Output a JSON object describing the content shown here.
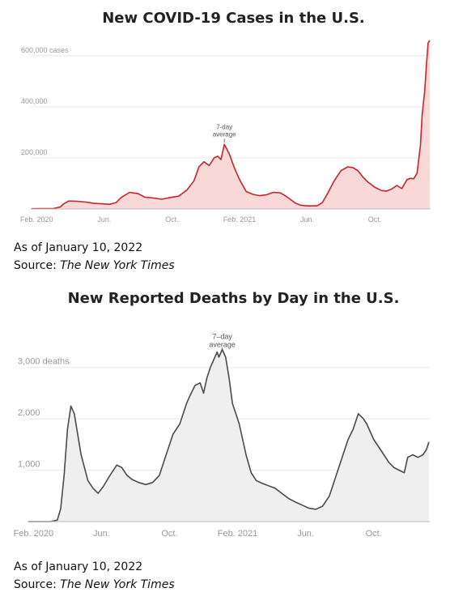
{
  "chart_data": [
    {
      "type": "area",
      "title": "New COVID-19 Cases in the U.S.",
      "xlabel": "",
      "ylabel": "",
      "x_unit": "months since Jan 2020",
      "x_ticks": [
        {
          "label": "Feb. 2020",
          "x": 1
        },
        {
          "label": "Jun.",
          "x": 5
        },
        {
          "label": "Oct.",
          "x": 9
        },
        {
          "label": "Feb. 2021",
          "x": 13
        },
        {
          "label": "Jun.",
          "x": 17
        },
        {
          "label": "Oct.",
          "x": 21
        }
      ],
      "y_ticks": [
        {
          "label": "600,000 cases",
          "y": 600000
        },
        {
          "label": "400,000",
          "y": 400000
        },
        {
          "label": "200,000",
          "y": 200000
        }
      ],
      "xlim": [
        0.65,
        24.3
      ],
      "ylim": [
        0,
        660000
      ],
      "annotation": {
        "lines": [
          "7-day",
          "average"
        ],
        "x": 12.1,
        "y": 253000
      },
      "series": [
        {
          "color": "#cc2229",
          "fill": "#f9d9d8",
          "x": [
            0.7,
            2.0,
            2.4,
            2.6,
            2.9,
            3.4,
            3.9,
            4.4,
            4.9,
            5.3,
            5.7,
            6.0,
            6.5,
            7.0,
            7.4,
            7.9,
            8.4,
            8.9,
            9.4,
            9.9,
            10.3,
            10.6,
            10.9,
            11.2,
            11.5,
            11.7,
            11.9,
            12.1,
            12.4,
            12.7,
            13.0,
            13.4,
            13.8,
            14.2,
            14.6,
            15.0,
            15.4,
            15.7,
            16.0,
            16.3,
            16.6,
            17.0,
            17.3,
            17.6,
            17.9,
            18.2,
            18.6,
            19.0,
            19.4,
            19.7,
            20.0,
            20.3,
            20.6,
            21.0,
            21.4,
            21.7,
            22.0,
            22.3,
            22.6,
            22.9,
            23.1,
            23.3,
            23.5,
            23.7,
            23.8,
            23.95,
            24.05,
            24.15,
            24.25
          ],
          "y": [
            1000,
            2000,
            8000,
            20000,
            31000,
            30000,
            27000,
            22000,
            20000,
            18000,
            25000,
            45000,
            65000,
            60000,
            46000,
            43000,
            38000,
            45000,
            50000,
            75000,
            110000,
            165000,
            185000,
            170000,
            200000,
            207000,
            194000,
            253000,
            215000,
            160000,
            115000,
            68000,
            57000,
            52000,
            56000,
            65000,
            63000,
            52000,
            38000,
            23000,
            15000,
            12000,
            12000,
            13000,
            25000,
            60000,
            110000,
            150000,
            165000,
            162000,
            150000,
            125000,
            105000,
            85000,
            72000,
            70000,
            78000,
            92000,
            80000,
            115000,
            120000,
            118000,
            140000,
            250000,
            370000,
            460000,
            560000,
            650000,
            660000
          ]
        }
      ]
    },
    {
      "type": "area",
      "title": "New Reported Deaths by Day in the U.S.",
      "xlabel": "",
      "ylabel": "",
      "x_unit": "months since Jan 2020",
      "x_ticks": [
        {
          "label": "Feb. 2020",
          "x": 1
        },
        {
          "label": "Jun.",
          "x": 5
        },
        {
          "label": "Oct.",
          "x": 9
        },
        {
          "label": "Feb. 2021",
          "x": 13
        },
        {
          "label": "Jun.",
          "x": 17
        },
        {
          "label": "Oct.",
          "x": 21
        }
      ],
      "y_ticks": [
        {
          "label": "3,000 deaths",
          "y": 3000
        },
        {
          "label": "2,000",
          "y": 2000
        },
        {
          "label": "1,000",
          "y": 1000
        }
      ],
      "xlim": [
        0.65,
        24.3
      ],
      "ylim": [
        0,
        3500
      ],
      "annotation": {
        "lines": [
          "7–day",
          "average"
        ],
        "x": 12.1,
        "y": 3350
      },
      "series": [
        {
          "color": "#4a4a4a",
          "fill": "#efefef",
          "x": [
            0.7,
            2.0,
            2.4,
            2.6,
            2.8,
            3.0,
            3.2,
            3.4,
            3.6,
            3.8,
            4.0,
            4.2,
            4.5,
            4.8,
            5.1,
            5.5,
            5.9,
            6.2,
            6.5,
            6.8,
            7.2,
            7.6,
            8.0,
            8.4,
            8.8,
            9.2,
            9.6,
            10.0,
            10.2,
            10.5,
            10.8,
            11.0,
            11.2,
            11.4,
            11.6,
            11.8,
            11.9,
            12.1,
            12.3,
            12.5,
            12.7,
            12.9,
            13.1,
            13.3,
            13.5,
            13.8,
            14.1,
            14.4,
            14.8,
            15.2,
            15.6,
            16.0,
            16.4,
            16.8,
            17.2,
            17.6,
            18.0,
            18.4,
            18.8,
            19.2,
            19.5,
            19.8,
            20.1,
            20.4,
            20.6,
            20.8,
            21.0,
            21.3,
            21.6,
            21.9,
            22.2,
            22.5,
            22.8,
            23.0,
            23.3,
            23.6,
            23.9,
            24.1,
            24.25
          ],
          "y": [
            0,
            0,
            30,
            250,
            900,
            1800,
            2250,
            2100,
            1700,
            1300,
            1050,
            800,
            650,
            550,
            680,
            900,
            1100,
            1050,
            900,
            820,
            760,
            720,
            760,
            900,
            1300,
            1700,
            1900,
            2300,
            2450,
            2650,
            2700,
            2500,
            2800,
            3000,
            3150,
            3300,
            3200,
            3350,
            3200,
            2800,
            2300,
            2100,
            1900,
            1600,
            1300,
            950,
            800,
            750,
            700,
            650,
            550,
            450,
            380,
            320,
            260,
            240,
            300,
            500,
            900,
            1300,
            1600,
            1800,
            2100,
            2000,
            1900,
            1750,
            1600,
            1450,
            1300,
            1150,
            1050,
            1000,
            950,
            1250,
            1300,
            1250,
            1300,
            1400,
            1550
          ]
        }
      ]
    }
  ],
  "notes": [
    {
      "as_of": "As of January 10, 2022",
      "source_prefix": "Source:",
      "source_name": "The New York Times"
    },
    {
      "as_of": "As of January 10, 2022",
      "source_prefix": "Source:",
      "source_name": "The New York Times"
    }
  ]
}
